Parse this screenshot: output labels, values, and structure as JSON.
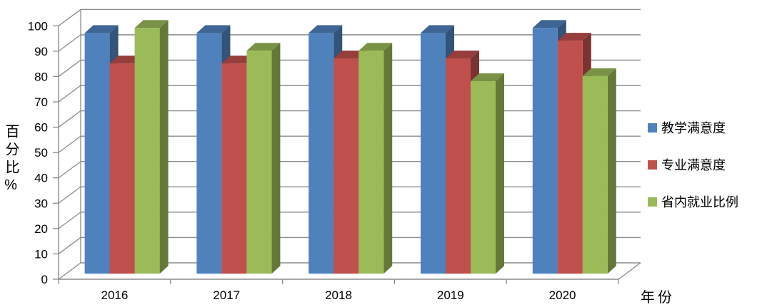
{
  "chart_data": {
    "type": "bar",
    "variant": "3d-clustered-column",
    "title": "",
    "xlabel": "年份",
    "ylabel": "百分比%",
    "categories": [
      "2016",
      "2017",
      "2018",
      "2019",
      "2020"
    ],
    "series": [
      {
        "name": "教学满意度",
        "color": "#4F81BD",
        "values": [
          95,
          95,
          95,
          95,
          97
        ]
      },
      {
        "name": "专业满意度",
        "color": "#C0504D",
        "values": [
          83,
          83,
          85,
          85,
          92
        ]
      },
      {
        "name": "省内就业比例",
        "color": "#9BBB59",
        "values": [
          97,
          88,
          88,
          76,
          78
        ]
      }
    ],
    "ylim": [
      0,
      100
    ],
    "ytick_step": 10,
    "grid": true,
    "grid_color": "#8B8B8B",
    "axis_color": "#8B8B8B",
    "text_color": "#000000",
    "legend_position": "right"
  }
}
